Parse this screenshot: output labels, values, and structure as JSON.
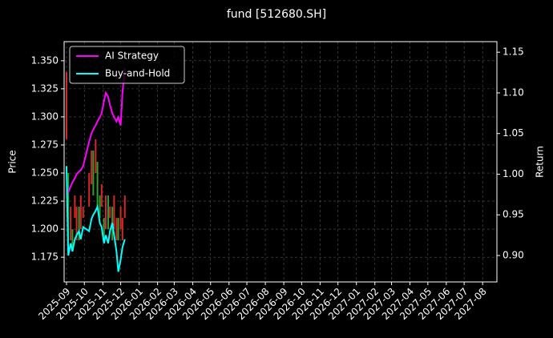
{
  "chart_data": {
    "type": "candlestick",
    "title": "fund [512680.SH]",
    "ylabel": "Price",
    "y2label": "Return",
    "x": [
      "2025-09-01",
      "2025-09-04",
      "2025-09-08",
      "2025-09-11",
      "2025-09-15",
      "2025-09-18",
      "2025-09-22",
      "2025-09-25",
      "2025-09-29",
      "2025-10-09",
      "2025-10-13",
      "2025-10-16",
      "2025-10-20",
      "2025-10-23",
      "2025-10-27",
      "2025-10-30",
      "2025-11-03",
      "2025-11-06",
      "2025-11-10",
      "2025-11-13",
      "2025-11-17",
      "2025-11-20",
      "2025-11-24",
      "2025-11-27",
      "2025-12-01",
      "2025-12-04",
      "2025-12-08"
    ],
    "open": [
      1.28,
      1.25,
      1.19,
      1.2,
      1.21,
      1.19,
      1.22,
      1.2,
      1.21,
      1.22,
      1.24,
      1.27,
      1.25,
      1.26,
      1.23,
      1.22,
      1.21,
      1.2,
      1.23,
      1.21,
      1.22,
      1.2,
      1.19,
      1.21,
      1.2,
      1.19,
      1.21
    ],
    "close": [
      1.34,
      1.19,
      1.22,
      1.18,
      1.23,
      1.22,
      1.19,
      1.23,
      1.22,
      1.25,
      1.27,
      1.23,
      1.28,
      1.22,
      1.21,
      1.24,
      1.19,
      1.23,
      1.2,
      1.22,
      1.19,
      1.23,
      1.21,
      1.19,
      1.22,
      1.21,
      1.23
    ],
    "up_color": "#d62728",
    "down_color": "#2ca02c",
    "series": [
      {
        "name": "AI Strategy",
        "color": "#ff00ff",
        "axis": "y2",
        "values": [
          0.975,
          0.978,
          0.985,
          0.99,
          0.995,
          1.0,
          1.003,
          1.005,
          1.01,
          1.04,
          1.05,
          1.055,
          1.06,
          1.065,
          1.07,
          1.075,
          1.09,
          1.1,
          1.095,
          1.085,
          1.075,
          1.07,
          1.065,
          1.07,
          1.06,
          1.1,
          1.13
        ]
      },
      {
        "name": "Buy-and-Hold",
        "color": "#00ffff",
        "axis": "y2",
        "values": [
          1.01,
          0.9,
          0.915,
          0.905,
          0.92,
          0.925,
          0.93,
          0.92,
          0.935,
          0.93,
          0.945,
          0.95,
          0.955,
          0.96,
          0.94,
          0.935,
          0.915,
          0.925,
          0.915,
          0.93,
          0.94,
          0.925,
          0.905,
          0.88,
          0.895,
          0.91,
          0.92
        ]
      }
    ],
    "xlim": [
      "2025-08-28",
      "2027-08-25"
    ],
    "xticks": [
      "2025-09",
      "2025-10",
      "2025-11",
      "2025-12",
      "2026-01",
      "2026-02",
      "2026-03",
      "2026-04",
      "2026-05",
      "2026-06",
      "2026-07",
      "2026-08",
      "2026-09",
      "2026-10",
      "2026-11",
      "2026-12",
      "2027-01",
      "2027-02",
      "2027-03",
      "2027-04",
      "2027-05",
      "2027-06",
      "2027-07",
      "2027-08"
    ],
    "ylim": [
      1.153,
      1.367
    ],
    "yticks": [
      1.175,
      {
        "value": 1.2,
        "label": "1.200"
      },
      1.225,
      {
        "value": 1.25,
        "label": "1.250"
      },
      1.275,
      {
        "value": 1.3,
        "label": "1.300"
      },
      1.325,
      {
        "value": 1.35,
        "label": "1.350"
      }
    ],
    "y2lim": [
      0.8675,
      1.163
    ],
    "y2ticks": [
      {
        "value": 0.9,
        "label": "0.90"
      },
      0.95,
      {
        "value": 1.0,
        "label": "1.00"
      },
      1.05,
      {
        "value": 1.1,
        "label": "1.10"
      },
      1.15
    ],
    "grid": true,
    "legend": "upper left"
  }
}
